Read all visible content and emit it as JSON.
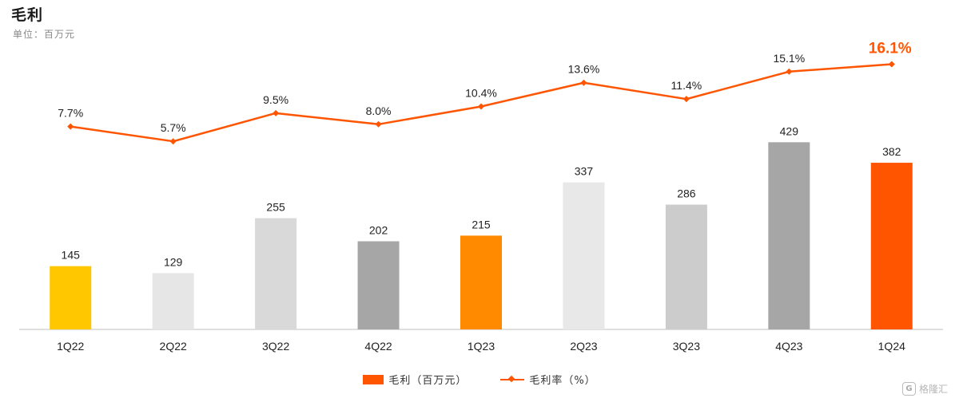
{
  "header": {
    "title": "毛利",
    "subtitle": "单位：百万元"
  },
  "chart_data": {
    "type": "bar",
    "categories": [
      "1Q22",
      "2Q22",
      "3Q22",
      "4Q22",
      "1Q23",
      "2Q23",
      "3Q23",
      "4Q23",
      "1Q24"
    ],
    "series": [
      {
        "name": "毛利（百万元）",
        "type": "bar",
        "values": [
          145,
          129,
          255,
          202,
          215,
          337,
          286,
          429,
          382
        ],
        "labels": [
          "145",
          "129",
          "255",
          "202",
          "215",
          "337",
          "286",
          "429",
          "382"
        ],
        "colors": [
          "#ffc700",
          "#e6e6e6",
          "#d9d9d9",
          "#a6a6a6",
          "#ff8a00",
          "#e8e8e8",
          "#cccccc",
          "#a6a6a6",
          "#ff5500"
        ]
      },
      {
        "name": "毛利率（%）",
        "type": "line",
        "values": [
          7.7,
          5.7,
          9.5,
          8.0,
          10.4,
          13.6,
          11.4,
          15.1,
          16.1
        ],
        "labels": [
          "7.7%",
          "5.7%",
          "9.5%",
          "8.0%",
          "10.4%",
          "13.6%",
          "11.4%",
          "15.1%",
          "16.1%"
        ],
        "color": "#ff5500",
        "highlight_color": "#ff5500"
      }
    ],
    "legend": [
      "毛利（百万元）",
      "毛利率（%）"
    ],
    "legend_position": "bottom",
    "grid": false
  },
  "watermark": {
    "logo": "G",
    "text": "格隆汇"
  }
}
